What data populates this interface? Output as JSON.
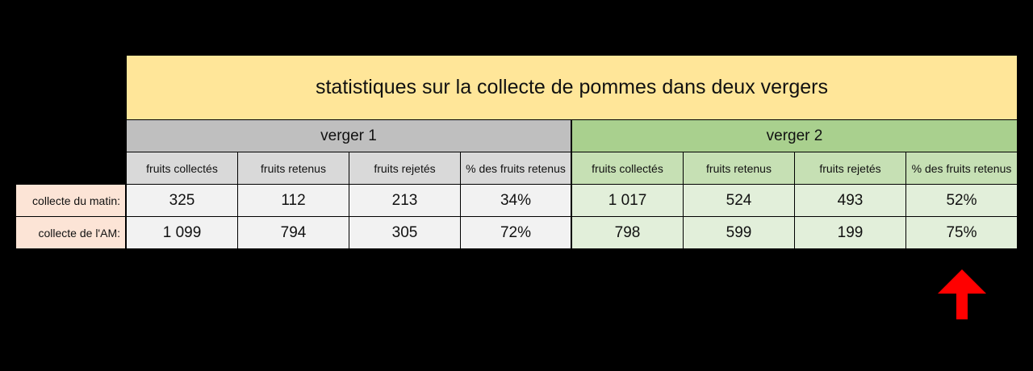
{
  "title": "statistiques sur la collecte de pommes dans deux vergers",
  "groups": [
    "verger 1",
    "verger 2"
  ],
  "columns": [
    "fruits collectés",
    "fruits retenus",
    "fruits rejetés",
    "% des fruits retenus"
  ],
  "rows": [
    {
      "label": "collecte du matin:",
      "verger1": [
        "325",
        "112",
        "213",
        "34%"
      ],
      "verger2": [
        "1 017",
        "524",
        "493",
        "52%"
      ]
    },
    {
      "label": "collecte de l'AM:",
      "verger1": [
        "1 099",
        "794",
        "305",
        "72%"
      ],
      "verger2": [
        "798",
        "599",
        "199",
        "75%"
      ]
    }
  ],
  "colors": {
    "title_bg": "#ffe699",
    "verger1_bg": "#bfbfbf",
    "verger2_bg": "#a9d08e",
    "arrow": "#ff0000",
    "row_label_bg": "#fce4d6"
  },
  "icons": {
    "arrow": "up-arrow-icon"
  }
}
